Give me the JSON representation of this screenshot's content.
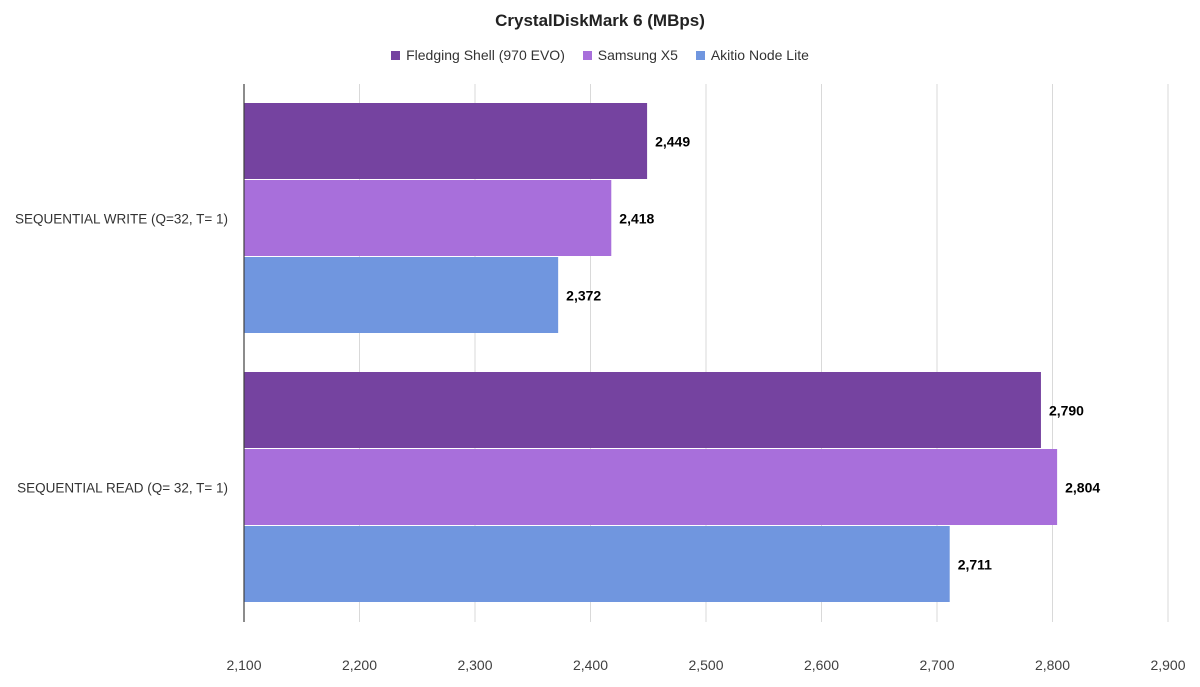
{
  "chart_data": {
    "type": "bar",
    "orientation": "horizontal",
    "title": "CrystalDiskMark 6 (MBps)",
    "xlabel": "",
    "ylabel": "",
    "categories": [
      "SEQUENTIAL WRITE (Q=32, T= 1)",
      "SEQUENTIAL READ (Q= 32, T= 1)"
    ],
    "series": [
      {
        "name": "Fledging Shell (970 EVO)",
        "color": "#7543a0",
        "values": [
          2449,
          2790
        ],
        "labels": [
          "2,449",
          "2,790"
        ]
      },
      {
        "name": "Samsung X5",
        "color": "#a86fdb",
        "values": [
          2418,
          2804
        ],
        "labels": [
          "2,418",
          "2,804"
        ]
      },
      {
        "name": "Akitio Node Lite",
        "color": "#7096df",
        "values": [
          2372,
          2711
        ],
        "labels": [
          "2,372",
          "2,711"
        ]
      }
    ],
    "xlim": [
      2100,
      2900
    ],
    "xticks": [
      2100,
      2200,
      2300,
      2400,
      2500,
      2600,
      2700,
      2800,
      2900
    ],
    "xtick_labels": [
      "2,100",
      "2,200",
      "2,300",
      "2,400",
      "2,500",
      "2,600",
      "2,700",
      "2,800",
      "2,900"
    ],
    "grid": "vertical",
    "legend_position": "top"
  }
}
